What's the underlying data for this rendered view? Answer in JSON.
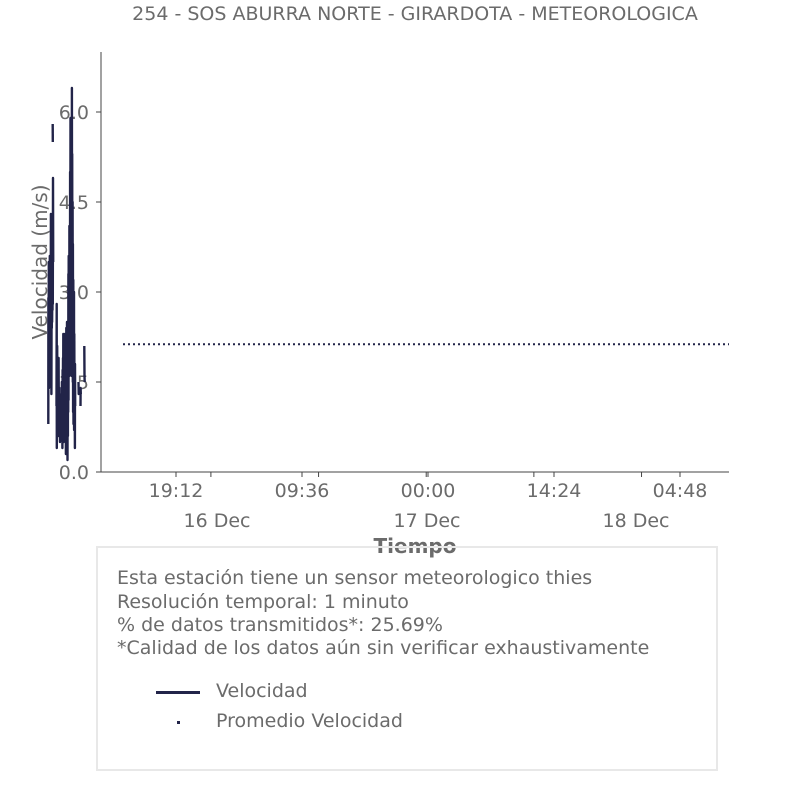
{
  "chart_data": {
    "type": "line",
    "title": "254 - SOS ABURRA NORTE - GIRARDOTA - METEOROLOGICA",
    "xlabel": "Tiempo",
    "ylabel": "Velocidad (m/s)",
    "ylim": [
      0,
      7
    ],
    "yticks": [
      "0.0",
      "1.5",
      "3.0",
      "4.5",
      "6.0"
    ],
    "xtick_labels": [
      "19:12",
      "09:36",
      "00:00",
      "14:24",
      "04:48"
    ],
    "date_labels": [
      "16 Dec",
      "17 Dec",
      "18 Dec"
    ],
    "series": [
      {
        "name": "Velocidad",
        "color": "#222449",
        "segments": [
          [
            [
              4.6,
              0.8
            ],
            [
              4.62,
              2.9
            ],
            [
              4.64,
              2.0
            ],
            [
              4.66,
              3.5
            ],
            [
              4.68,
              1.4
            ],
            [
              4.7,
              3.2
            ],
            [
              4.72,
              1.9
            ],
            [
              4.74,
              2.8
            ],
            [
              4.76,
              2.1
            ],
            [
              4.78,
              3.6
            ],
            [
              4.8,
              2.3
            ],
            [
              4.82,
              3.1
            ],
            [
              4.84,
              1.8
            ],
            [
              4.86,
              2.9
            ],
            [
              4.88,
              2.2
            ],
            [
              4.9,
              4.3
            ],
            [
              4.92,
              2.6
            ],
            [
              4.94,
              3.3
            ],
            [
              4.96,
              1.3
            ],
            [
              4.98,
              3.0
            ],
            [
              5.0,
              2.4
            ],
            [
              5.02,
              3.7
            ],
            [
              5.04,
              2.5
            ],
            [
              5.06,
              3.0
            ],
            [
              5.08,
              2.7
            ],
            [
              5.1,
              3.8
            ],
            [
              5.12,
              2.8
            ],
            [
              5.14,
              4.9
            ],
            [
              5.16,
              3.5
            ]
          ],
          [
            [
              5.11,
              5.8
            ],
            [
              5.12,
              5.5
            ]
          ],
          [
            [
              5.54,
              1.1
            ],
            [
              5.56,
              2.8
            ],
            [
              5.58,
              0.4
            ],
            [
              5.6,
              1.1
            ],
            [
              5.62,
              2.1
            ],
            [
              5.64,
              0.7
            ],
            [
              5.66,
              1.5
            ],
            [
              5.68,
              0.9
            ],
            [
              5.7,
              1.8
            ],
            [
              5.72,
              0.8
            ],
            [
              5.74,
              1.2
            ],
            [
              5.76,
              0.6
            ],
            [
              5.78,
              1.9
            ],
            [
              5.8,
              1.0
            ]
          ],
          [
            [
              5.86,
              0.8
            ],
            [
              5.88,
              1.4
            ],
            [
              5.9,
              0.7
            ],
            [
              5.92,
              1.2
            ],
            [
              5.94,
              0.5
            ],
            [
              5.96,
              1.1
            ],
            [
              5.98,
              0.9
            ]
          ],
          [
            [
              6.1,
              0.5
            ],
            [
              6.12,
              1.3
            ],
            [
              6.14,
              0.7
            ],
            [
              6.16,
              1.5
            ],
            [
              6.18,
              0.8
            ],
            [
              6.2,
              1.2
            ],
            [
              6.22,
              0.4
            ],
            [
              6.24,
              1.7
            ],
            [
              6.26,
              1.0
            ],
            [
              6.28,
              1.9
            ],
            [
              6.3,
              0.6
            ],
            [
              6.32,
              2.3
            ],
            [
              6.34,
              0.9
            ],
            [
              6.36,
              1.4
            ],
            [
              6.38,
              0.5
            ],
            [
              6.4,
              1.1
            ],
            [
              6.42,
              1.6
            ]
          ],
          [
            [
              6.44,
              0.8
            ],
            [
              6.46,
              2.0
            ],
            [
              6.48,
              1.4
            ],
            [
              6.5,
              2.3
            ],
            [
              6.52,
              0.7
            ],
            [
              6.54,
              1.3
            ],
            [
              6.56,
              1.0
            ]
          ],
          [
            [
              6.6,
              2.0
            ],
            [
              6.62,
              0.3
            ],
            [
              6.64,
              1.0
            ],
            [
              6.66,
              2.4
            ],
            [
              6.68,
              0.6
            ],
            [
              6.7,
              1.2
            ],
            [
              6.72,
              0.6
            ],
            [
              6.74,
              2.5
            ],
            [
              6.76,
              0.9
            ],
            [
              6.78,
              1.7
            ],
            [
              6.8,
              0.2
            ],
            [
              6.82,
              2.2
            ],
            [
              6.84,
              0.6
            ],
            [
              6.86,
              2.5
            ],
            [
              6.88,
              1.0
            ],
            [
              6.9,
              3.3
            ],
            [
              6.92,
              1.2
            ],
            [
              6.94,
              3.6
            ],
            [
              6.96,
              2.0
            ],
            [
              6.98,
              3.1
            ],
            [
              7.0,
              1.6
            ],
            [
              7.02,
              4.1
            ],
            [
              7.04,
              2.2
            ],
            [
              7.06,
              3.9
            ],
            [
              7.08,
              2.1
            ],
            [
              7.1,
              5.0
            ],
            [
              7.12,
              2.6
            ],
            [
              7.14,
              5.9
            ],
            [
              7.16,
              2.3
            ],
            [
              7.18,
              5.4
            ],
            [
              7.2,
              2.0
            ],
            [
              7.22,
              5.9
            ],
            [
              7.24,
              2.5
            ],
            [
              7.26,
              5.5
            ],
            [
              7.28,
              1.6
            ],
            [
              7.3,
              6.4
            ],
            [
              7.32,
              2.3
            ],
            [
              7.34,
              5.3
            ],
            [
              7.36,
              1.9
            ],
            [
              7.38,
              4.5
            ],
            [
              7.4,
              1.5
            ],
            [
              7.42,
              3.8
            ],
            [
              7.44,
              1.0
            ],
            [
              7.46,
              3.2
            ],
            [
              7.48,
              0.8
            ],
            [
              7.5,
              2.8
            ],
            [
              7.52,
              1.2
            ],
            [
              7.54,
              3.0
            ],
            [
              7.56,
              0.7
            ],
            [
              7.58,
              2.3
            ],
            [
              7.6,
              0.9
            ],
            [
              7.62,
              1.4
            ],
            [
              7.64,
              0.4
            ],
            [
              7.66,
              1.8
            ],
            [
              7.68,
              1.1
            ]
          ],
          [
            [
              8.06,
              1.5
            ],
            [
              8.08,
              1.3
            ],
            [
              8.1,
              1.4
            ]
          ],
          [
            [
              8.28,
              1.1
            ],
            [
              8.3,
              1.4
            ],
            [
              8.32,
              1.3
            ]
          ],
          [
            [
              8.72,
              2.1
            ],
            [
              8.74,
              1.6
            ],
            [
              8.76,
              1.5
            ]
          ]
        ]
      },
      {
        "name": "Promedio Velocidad",
        "color": "#222449",
        "style": "dotted",
        "value": 2.13
      }
    ],
    "legend": {
      "placement": "below",
      "entries": [
        "Velocidad",
        "Promedio Velocidad"
      ]
    }
  },
  "info": {
    "lines": [
      "Esta estación tiene un sensor meteorologico thies",
      "Resolución temporal: 1 minuto",
      "% de datos transmitidos*: 25.69%",
      "*Calidad de los datos aún sin verificar exhaustivamente"
    ]
  }
}
